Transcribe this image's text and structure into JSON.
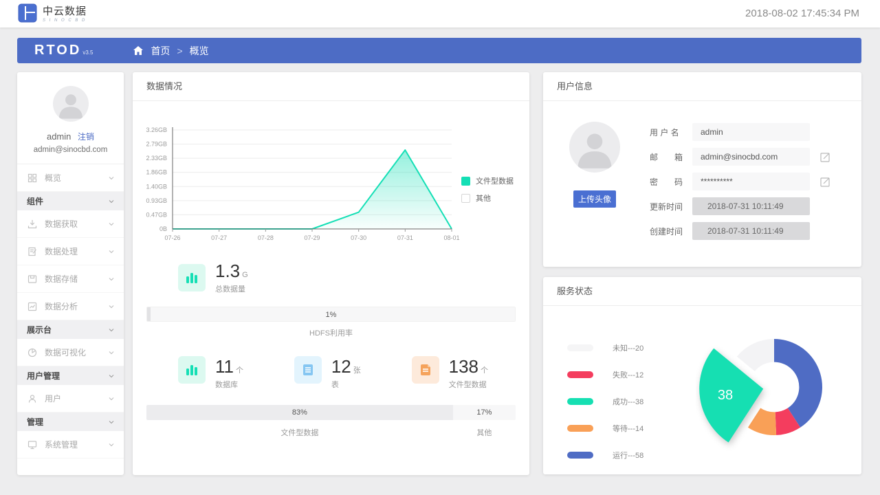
{
  "app": {
    "brand_name": "中云数据",
    "brand_sub": "S I N O C B D",
    "timestamp": "2018-08-02  17:45:34 PM"
  },
  "breadcrumb": {
    "logo": "RTOD",
    "version": "v3.5",
    "home": "首页",
    "separator": ">",
    "current": "概览"
  },
  "sidebar": {
    "user": {
      "name": "admin",
      "logout_label": "注销",
      "email": "admin@sinocbd.com"
    },
    "menu": [
      {
        "label": "概览",
        "type": "item"
      },
      {
        "label": "组件",
        "type": "section"
      },
      {
        "label": "数据获取",
        "type": "item"
      },
      {
        "label": "数据处理",
        "type": "item"
      },
      {
        "label": "数据存储",
        "type": "item"
      },
      {
        "label": "数据分析",
        "type": "item"
      },
      {
        "label": "展示台",
        "type": "section"
      },
      {
        "label": "数据可视化",
        "type": "item"
      },
      {
        "label": "用户管理",
        "type": "section"
      },
      {
        "label": "用户",
        "type": "item"
      },
      {
        "label": "管理",
        "type": "section"
      },
      {
        "label": "系统管理",
        "type": "item"
      }
    ]
  },
  "data_panel": {
    "title": "数据情况",
    "total": {
      "value": "1.3",
      "unit": "G",
      "label": "总数据量"
    },
    "hdfs": {
      "percent": "1%",
      "label": "HDFS利用率"
    },
    "counters": [
      {
        "value": "11",
        "unit": "个",
        "label": "数据库"
      },
      {
        "value": "12",
        "unit": "张",
        "label": "表"
      },
      {
        "value": "138",
        "unit": "个",
        "label": "文件型数据"
      }
    ],
    "ratio_bar": {
      "left_percent": "83%",
      "left_label": "文件型数据",
      "right_percent": "17%",
      "right_label": "其他"
    }
  },
  "user_panel": {
    "title": "用户信息",
    "upload_button": "上传头像",
    "fields": [
      {
        "label": "用 户 名",
        "value": "admin",
        "editable": false,
        "disabled": false
      },
      {
        "label": "邮　　箱",
        "value": "admin@sinocbd.com",
        "editable": true,
        "disabled": false
      },
      {
        "label": "密　　码",
        "value": "**********",
        "editable": true,
        "disabled": false
      },
      {
        "label": "更新时间",
        "value": "2018-07-31  10:11:49",
        "editable": false,
        "disabled": true
      },
      {
        "label": "创建时间",
        "value": "2018-07-31  10:11:49",
        "editable": false,
        "disabled": true
      }
    ]
  },
  "service_panel": {
    "title": "服务状态"
  },
  "chart_data": [
    {
      "type": "area",
      "title": "数据情况",
      "x": [
        "07-26",
        "07-27",
        "07-28",
        "07-29",
        "07-30",
        "07-31",
        "08-01"
      ],
      "series": [
        {
          "name": "文件型数据",
          "values": [
            0,
            0,
            0,
            0,
            0.55,
            2.6,
            0
          ],
          "color": "#14dfb5"
        }
      ],
      "y_ticks": [
        "0B",
        "0.47GB",
        "0.93GB",
        "1.40GB",
        "1.86GB",
        "2.33GB",
        "2.79GB",
        "3.26GB"
      ],
      "ylim": [
        0,
        3.26
      ],
      "xlabel": "",
      "ylabel": "",
      "grid": true,
      "legend_position": "right",
      "legend": [
        {
          "label": "文件型数据",
          "color": "#14dfb5"
        },
        {
          "label": "其他",
          "color": "#ffffff"
        }
      ]
    },
    {
      "type": "pie",
      "title": "服务状态",
      "slices": [
        {
          "label": "运行",
          "value": 58,
          "color": "#4f6cc4",
          "selected": false
        },
        {
          "label": "失败",
          "value": 12,
          "color": "#f43d5e",
          "selected": false
        },
        {
          "label": "等待",
          "value": 14,
          "color": "#f9a057",
          "selected": false
        },
        {
          "label": "成功",
          "value": 38,
          "color": "#16dfb2",
          "selected": true,
          "label_shown": "38"
        },
        {
          "label": "未知",
          "value": 20,
          "color": "#f3f3f5",
          "selected": false
        }
      ],
      "legend": [
        {
          "label": "未知",
          "value": 20,
          "color": "#f5f5f6"
        },
        {
          "label": "失败",
          "value": 12,
          "color": "#f43d5e"
        },
        {
          "label": "成功",
          "value": 38,
          "color": "#16dfb2"
        },
        {
          "label": "等待",
          "value": 14,
          "color": "#f9a057"
        },
        {
          "label": "运行",
          "value": 58,
          "color": "#4f6cc4"
        }
      ],
      "legend_separator": "---",
      "legend_position": "left",
      "inner_radius_ratio": 0.52,
      "start_angle_deg": 0
    }
  ]
}
